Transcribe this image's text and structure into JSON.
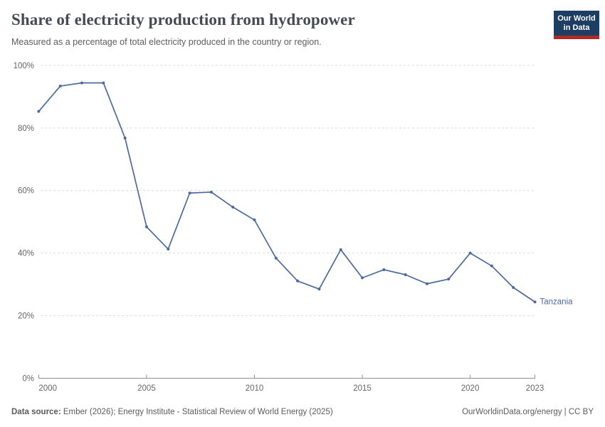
{
  "header": {
    "title": "Share of electricity production from hydropower",
    "subtitle": "Measured as a percentage of total electricity produced in the country or region.",
    "logo": {
      "line1": "Our World",
      "line2": "in Data",
      "bg_color": "#1d3d63",
      "accent_color": "#b22a28"
    }
  },
  "chart_data": {
    "type": "line",
    "title": "Share of electricity production from hydropower",
    "entity": "Tanzania",
    "unit": "%",
    "x": [
      2000,
      2001,
      2002,
      2003,
      2004,
      2005,
      2006,
      2007,
      2008,
      2009,
      2010,
      2011,
      2012,
      2013,
      2014,
      2015,
      2016,
      2017,
      2018,
      2019,
      2020,
      2021,
      2022,
      2023
    ],
    "values": [
      85.3,
      93.4,
      94.4,
      94.4,
      76.8,
      48.4,
      41.3,
      59.2,
      59.5,
      54.7,
      50.6,
      38.4,
      31.1,
      28.5,
      41.1,
      32.1,
      34.7,
      33.1,
      30.2,
      31.7,
      40.0,
      35.9,
      29.0,
      24.4
    ],
    "xlim": [
      2000,
      2023
    ],
    "ylim": [
      0,
      100
    ],
    "yticks": [
      0,
      20,
      40,
      60,
      80,
      100
    ],
    "ytick_labels": [
      "0%",
      "20%",
      "40%",
      "60%",
      "80%",
      "100%"
    ],
    "xticks": [
      2000,
      2005,
      2010,
      2015,
      2020,
      2023
    ],
    "grid": true,
    "line_color": "#4c6a9c",
    "gridline_color": "#dcdcdc",
    "axis_color": "#8f8f8f",
    "tick_label_color": "#666666",
    "legend_position": "end-of-line-label",
    "end_label": "Tanzania"
  },
  "footer": {
    "source_label": "Data source:",
    "source_text": " Ember (2026); Energy Institute - Statistical Review of World Energy (2025)",
    "link_text": "OurWorldinData.org/energy | CC BY"
  }
}
